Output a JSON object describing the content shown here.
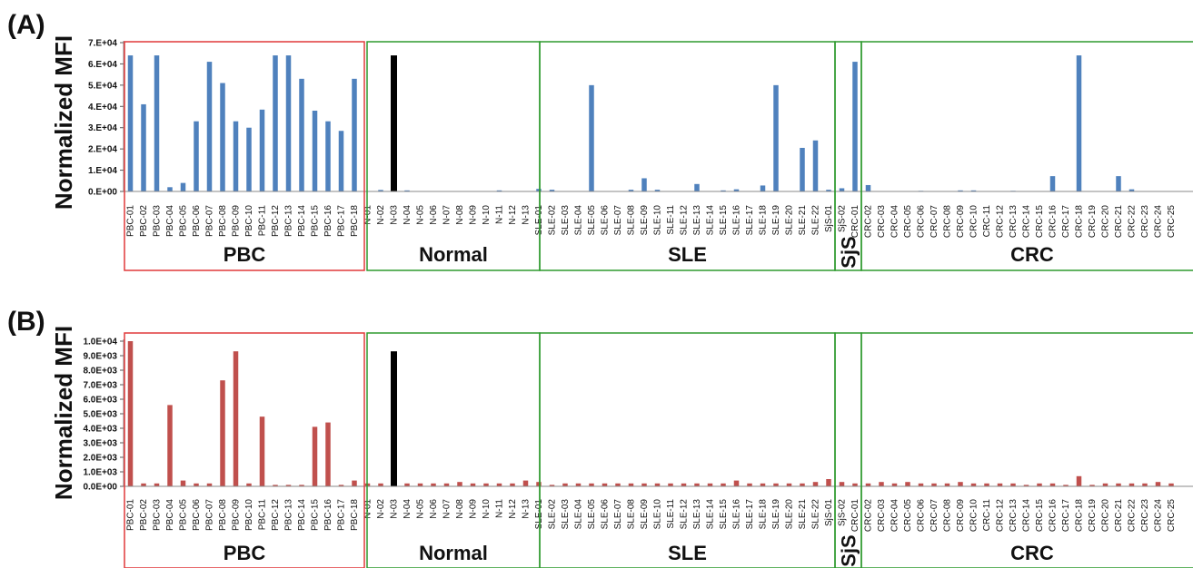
{
  "colors": {
    "group_pbc": "#e0393a",
    "group_other": "#2e9a2e",
    "series_a": "#4f81bd",
    "series_b": "#c0504d",
    "highlight": "#000000"
  },
  "chart_data": [
    {
      "panel": "(A)",
      "type": "bar",
      "ylabel": "Normalized MFI",
      "ylim": [
        0,
        70000
      ],
      "yticks": [
        "0.E+00",
        "1.E+04",
        "2.E+04",
        "3.E+04",
        "4.E+04",
        "5.E+04",
        "6.E+04",
        "7.E+04"
      ],
      "highlight_category": "N-03",
      "groups": [
        {
          "name": "PBC",
          "categories": [
            "PBC-01",
            "PBC-02",
            "PBC-03",
            "PBC-04",
            "PBC-05",
            "PBC-06",
            "PBC-07",
            "PBC-08",
            "PBC-09",
            "PBC-10",
            "PBC-11",
            "PBC-12",
            "PBC-13",
            "PBC-14",
            "PBC-15",
            "PBC-16",
            "PBC-17",
            "PBC-18"
          ],
          "values": [
            64000,
            41000,
            64000,
            2000,
            4000,
            33000,
            61000,
            51000,
            33000,
            30000,
            38500,
            64000,
            64000,
            53000,
            38000,
            33000,
            28500,
            53000
          ]
        },
        {
          "name": "Normal",
          "categories": [
            "N-01",
            "N-02",
            "N-03",
            "N-04",
            "N-05",
            "N-06",
            "N-07",
            "N-08",
            "N-09",
            "N-10",
            "N-11",
            "N-12",
            "N-13"
          ],
          "values": [
            200,
            700,
            64000,
            500,
            200,
            200,
            200,
            100,
            200,
            200,
            500,
            200,
            200
          ]
        },
        {
          "name": "SLE",
          "categories": [
            "SLE-01",
            "SLE-02",
            "SLE-03",
            "SLE-04",
            "SLE-05",
            "SLE-06",
            "SLE-07",
            "SLE-08",
            "SLE-09",
            "SLE-10",
            "SLE-11",
            "SLE-12",
            "SLE-13",
            "SLE-14",
            "SLE-15",
            "SLE-16",
            "SLE-17",
            "SLE-18",
            "SLE-19",
            "SLE-20",
            "SLE-21",
            "SLE-22"
          ],
          "values": [
            1200,
            800,
            200,
            200,
            50000,
            200,
            200,
            800,
            6200,
            800,
            200,
            200,
            3500,
            200,
            500,
            1000,
            200,
            2800,
            50000,
            200,
            20500,
            24000
          ]
        },
        {
          "name": "SjS",
          "categories": [
            "SjS-01",
            "SjS-02"
          ],
          "values": [
            800,
            1500
          ]
        },
        {
          "name": "CRC",
          "categories": [
            "CRC-01",
            "CRC-02",
            "CRC-03",
            "CRC-04",
            "CRC-05",
            "CRC-06",
            "CRC-07",
            "CRC-08",
            "CRC-09",
            "CRC-10",
            "CRC-11",
            "CRC-12",
            "CRC-13",
            "CRC-14",
            "CRC-15",
            "CRC-16",
            "CRC-17",
            "CRC-18",
            "CRC-19",
            "CRC-20",
            "CRC-21",
            "CRC-22",
            "CRC-23",
            "CRC-24",
            "CRC-25"
          ],
          "values": [
            61000,
            3000,
            200,
            200,
            200,
            300,
            200,
            200,
            500,
            500,
            200,
            200,
            300,
            200,
            200,
            7200,
            200,
            64000,
            200,
            200,
            7200,
            1000,
            200,
            200,
            200
          ]
        }
      ]
    },
    {
      "panel": "(B)",
      "type": "bar",
      "ylabel": "Normalized MFI",
      "ylim": [
        0,
        10000
      ],
      "yticks": [
        "0.0E+00",
        "1.0E+03",
        "2.0E+03",
        "3.0E+03",
        "4.0E+03",
        "5.0E+03",
        "6.0E+03",
        "7.0E+03",
        "8.0E+03",
        "9.0E+03",
        "1.0E+04"
      ],
      "highlight_category": "N-03",
      "groups": [
        {
          "name": "PBC",
          "categories": [
            "PBC-01",
            "PBC-02",
            "PBC-03",
            "PBC-04",
            "PBC-05",
            "PBC-06",
            "PBC-07",
            "PBC-08",
            "PBC-09",
            "PBC-10",
            "PBC-11",
            "PBC-12",
            "PBC-13",
            "PBC-14",
            "PBC-15",
            "PBC-16",
            "PBC-17",
            "PBC-18"
          ],
          "values": [
            10000,
            200,
            200,
            5600,
            400,
            200,
            200,
            7300,
            9300,
            200,
            4800,
            100,
            100,
            100,
            4100,
            4400,
            100,
            400
          ]
        },
        {
          "name": "Normal",
          "categories": [
            "N-01",
            "N-02",
            "N-03",
            "N-04",
            "N-05",
            "N-06",
            "N-07",
            "N-08",
            "N-09",
            "N-10",
            "N-11",
            "N-12",
            "N-13"
          ],
          "values": [
            200,
            200,
            9300,
            200,
            200,
            200,
            200,
            300,
            200,
            200,
            200,
            200,
            400
          ]
        },
        {
          "name": "SLE",
          "categories": [
            "SLE-01",
            "SLE-02",
            "SLE-03",
            "SLE-04",
            "SLE-05",
            "SLE-06",
            "SLE-07",
            "SLE-08",
            "SLE-09",
            "SLE-10",
            "SLE-11",
            "SLE-12",
            "SLE-13",
            "SLE-14",
            "SLE-15",
            "SLE-16",
            "SLE-17",
            "SLE-18",
            "SLE-19",
            "SLE-20",
            "SLE-21",
            "SLE-22"
          ],
          "values": [
            300,
            100,
            200,
            200,
            200,
            200,
            200,
            200,
            200,
            200,
            200,
            200,
            200,
            200,
            200,
            400,
            200,
            200,
            200,
            200,
            200,
            300
          ]
        },
        {
          "name": "SjS",
          "categories": [
            "SjS-01",
            "SjS-02"
          ],
          "values": [
            500,
            300
          ]
        },
        {
          "name": "CRC",
          "categories": [
            "CRC-01",
            "CRC-02",
            "CRC-03",
            "CRC-04",
            "CRC-05",
            "CRC-06",
            "CRC-07",
            "CRC-08",
            "CRC-09",
            "CRC-10",
            "CRC-11",
            "CRC-12",
            "CRC-13",
            "CRC-14",
            "CRC-15",
            "CRC-16",
            "CRC-17",
            "CRC-18",
            "CRC-19",
            "CRC-20",
            "CRC-21",
            "CRC-22",
            "CRC-23",
            "CRC-24",
            "CRC-25"
          ],
          "values": [
            200,
            200,
            300,
            200,
            300,
            200,
            200,
            200,
            300,
            200,
            200,
            200,
            200,
            100,
            200,
            200,
            100,
            700,
            100,
            200,
            200,
            200,
            200,
            300,
            200
          ]
        }
      ]
    }
  ]
}
